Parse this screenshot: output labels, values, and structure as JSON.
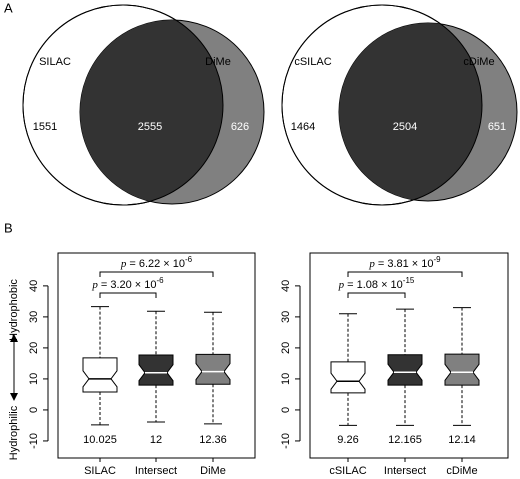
{
  "panel_labels": [
    "A",
    "B"
  ],
  "chart_data": [
    {
      "type": "venn",
      "sets": [
        "SILAC",
        "DiMe"
      ],
      "values": [
        1551,
        2555,
        626
      ],
      "colors": [
        "#ffffff",
        "#333333",
        "#808080"
      ]
    },
    {
      "type": "venn",
      "sets": [
        "cSILAC",
        "cDiMe"
      ],
      "values": [
        1464,
        2504,
        651
      ],
      "colors": [
        "#ffffff",
        "#333333",
        "#808080"
      ]
    },
    {
      "type": "box",
      "ylabel_top": "Hydrophobic",
      "ylabel_bottom": "Hydrophilic",
      "categories": [
        "SILAC",
        "Intersect",
        "DiMe"
      ],
      "boxes": [
        {
          "min": -4.8,
          "q1": 5.8,
          "median": 10.025,
          "q3": 16.8,
          "max": 33.3,
          "color": "#ffffff"
        },
        {
          "min": -3.9,
          "q1": 8,
          "median": 12,
          "q3": 17.7,
          "max": 31.8,
          "color": "#333333"
        },
        {
          "min": -4.5,
          "q1": 8.3,
          "median": 12.36,
          "q3": 17.9,
          "max": 31.5,
          "color": "#808080"
        }
      ],
      "annotations": [
        {
          "symbol": "p",
          "label": "= 3.20 × 10",
          "exponent": "-6"
        },
        {
          "symbol": "p",
          "label": "= 6.22 × 10",
          "exponent": "-6"
        }
      ],
      "ylim": [
        -15.5,
        50.6
      ],
      "yticks": [
        -10,
        0,
        10,
        20,
        30,
        40
      ]
    },
    {
      "type": "box",
      "categories": [
        "cSILAC",
        "Intersect",
        "cDiMe"
      ],
      "boxes": [
        {
          "min": -5,
          "q1": 5.5,
          "median": 9.26,
          "q3": 15.5,
          "max": 31,
          "color": "#ffffff"
        },
        {
          "min": -5,
          "q1": 8,
          "median": 12.165,
          "q3": 17.8,
          "max": 32.5,
          "color": "#333333"
        },
        {
          "min": -5,
          "q1": 8,
          "median": 12.14,
          "q3": 18,
          "max": 33,
          "color": "#808080"
        }
      ],
      "annotations": [
        {
          "symbol": "p",
          "label": "= 1.08 × 10",
          "exponent": "-15"
        },
        {
          "symbol": "p",
          "label": "= 3.81 × 10",
          "exponent": "-9"
        }
      ],
      "ylim": [
        -15.5,
        50.6
      ],
      "yticks": [
        -10,
        0,
        10,
        20,
        30,
        40
      ]
    }
  ]
}
